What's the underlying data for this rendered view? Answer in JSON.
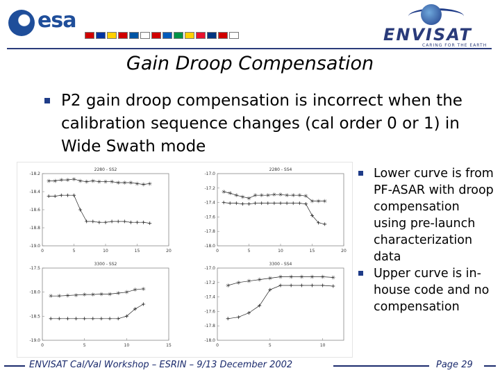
{
  "header": {
    "esa_logo_text": "esa",
    "envisat_logo_text": "ENVISAT",
    "envisat_tagline": "CARING FOR THE EARTH",
    "flag_colors": [
      "#d00000",
      "#0033a0",
      "#ffd000",
      "#d00000",
      "#0055a4",
      "#ffffff",
      "#d00000",
      "#005bbb",
      "#009246",
      "#ffd000",
      "#e8112d",
      "#003580",
      "#d00000",
      "#ffffff"
    ]
  },
  "title": "Gain Droop Compensation",
  "main_bullet": "P2 gain droop compensation is incorrect when the calibration sequence changes (cal order 0 or 1) in Wide Swath mode",
  "side_bullets": [
    "Lower curve is from PF-ASAR with droop compensation using pre-launch characterization data",
    "Upper curve is in-house code and no compensation"
  ],
  "footer": {
    "text": "ENVISAT Cal/Val Workshop – ESRIN – 9/13 December 2002",
    "page": "Page 29"
  },
  "chart_data": [
    {
      "type": "line",
      "title": "2280 - SS2",
      "x_ticks": [
        "0",
        "5",
        "10",
        "15",
        "20"
      ],
      "y_ticks": [
        "-18.2",
        "-18.4",
        "-18.6",
        "-18.8",
        "-19.0"
      ],
      "xlim": [
        0,
        20
      ],
      "ylim": [
        -19.0,
        -18.2
      ],
      "series": [
        {
          "marker": "star",
          "x": [
            1,
            2,
            3,
            4,
            5,
            6,
            7,
            8,
            9,
            10,
            11,
            12,
            13,
            14,
            15,
            16,
            17
          ],
          "y": [
            -18.28,
            -18.28,
            -18.27,
            -18.27,
            -18.26,
            -18.28,
            -18.29,
            -18.28,
            -18.29,
            -18.29,
            -18.29,
            -18.3,
            -18.3,
            -18.3,
            -18.31,
            -18.32,
            -18.31
          ]
        },
        {
          "marker": "plus",
          "x": [
            1,
            2,
            3,
            4,
            5,
            6,
            7,
            8,
            9,
            10,
            11,
            12,
            13,
            14,
            15,
            16,
            17
          ],
          "y": [
            -18.45,
            -18.45,
            -18.44,
            -18.44,
            -18.44,
            -18.6,
            -18.73,
            -18.73,
            -18.74,
            -18.74,
            -18.73,
            -18.73,
            -18.73,
            -18.74,
            -18.74,
            -18.74,
            -18.75
          ]
        }
      ]
    },
    {
      "type": "line",
      "title": "2280 - SS4",
      "x_ticks": [
        "0",
        "5",
        "10",
        "15",
        "20"
      ],
      "y_ticks": [
        "-17.0",
        "-17.2",
        "-17.4",
        "-17.6",
        "-17.8",
        "-18.0"
      ],
      "xlim": [
        0,
        20
      ],
      "ylim": [
        -18.0,
        -17.0
      ],
      "series": [
        {
          "marker": "star",
          "x": [
            1,
            2,
            3,
            4,
            5,
            6,
            7,
            8,
            9,
            10,
            11,
            12,
            13,
            14,
            15,
            16,
            17
          ],
          "y": [
            -17.25,
            -17.27,
            -17.3,
            -17.32,
            -17.34,
            -17.3,
            -17.3,
            -17.3,
            -17.29,
            -17.29,
            -17.3,
            -17.3,
            -17.3,
            -17.31,
            -17.38,
            -17.38,
            -17.38
          ]
        },
        {
          "marker": "plus",
          "x": [
            1,
            2,
            3,
            4,
            5,
            6,
            7,
            8,
            9,
            10,
            11,
            12,
            13,
            14,
            15,
            16,
            17
          ],
          "y": [
            -17.4,
            -17.41,
            -17.41,
            -17.42,
            -17.42,
            -17.41,
            -17.41,
            -17.41,
            -17.41,
            -17.41,
            -17.41,
            -17.41,
            -17.41,
            -17.42,
            -17.58,
            -17.68,
            -17.7
          ]
        }
      ]
    },
    {
      "type": "line",
      "title": "3300 - SS2",
      "x_ticks": [
        "0",
        "5",
        "10",
        "15"
      ],
      "y_ticks": [
        "-17.5",
        "-18.0",
        "-18.5",
        "-19.0"
      ],
      "xlim": [
        0,
        15
      ],
      "ylim": [
        -19.0,
        -17.5
      ],
      "series": [
        {
          "marker": "star",
          "x": [
            1,
            2,
            3,
            4,
            5,
            6,
            7,
            8,
            9,
            10,
            11,
            12
          ],
          "y": [
            -18.08,
            -18.08,
            -18.07,
            -18.06,
            -18.05,
            -18.05,
            -18.04,
            -18.04,
            -18.02,
            -18.0,
            -17.95,
            -17.93
          ]
        },
        {
          "marker": "plus",
          "x": [
            1,
            2,
            3,
            4,
            5,
            6,
            7,
            8,
            9,
            10,
            11,
            12
          ],
          "y": [
            -18.55,
            -18.55,
            -18.55,
            -18.55,
            -18.55,
            -18.55,
            -18.55,
            -18.55,
            -18.55,
            -18.5,
            -18.35,
            -18.25
          ]
        }
      ]
    },
    {
      "type": "line",
      "title": "3300 - SS4",
      "x_ticks": [
        "0",
        "5",
        "10"
      ],
      "y_ticks": [
        "-17.0",
        "-17.2",
        "-17.4",
        "-17.6",
        "-17.8",
        "-18.0"
      ],
      "xlim": [
        0,
        12
      ],
      "ylim": [
        -18.0,
        -17.0
      ],
      "series": [
        {
          "marker": "star",
          "x": [
            1,
            2,
            3,
            4,
            5,
            6,
            7,
            8,
            9,
            10,
            11
          ],
          "y": [
            -17.24,
            -17.2,
            -17.18,
            -17.16,
            -17.14,
            -17.12,
            -17.12,
            -17.12,
            -17.12,
            -17.12,
            -17.13
          ]
        },
        {
          "marker": "plus",
          "x": [
            1,
            2,
            3,
            4,
            5,
            6,
            7,
            8,
            9,
            10,
            11
          ],
          "y": [
            -17.7,
            -17.68,
            -17.62,
            -17.52,
            -17.3,
            -17.24,
            -17.24,
            -17.24,
            -17.24,
            -17.24,
            -17.25
          ]
        }
      ]
    }
  ]
}
